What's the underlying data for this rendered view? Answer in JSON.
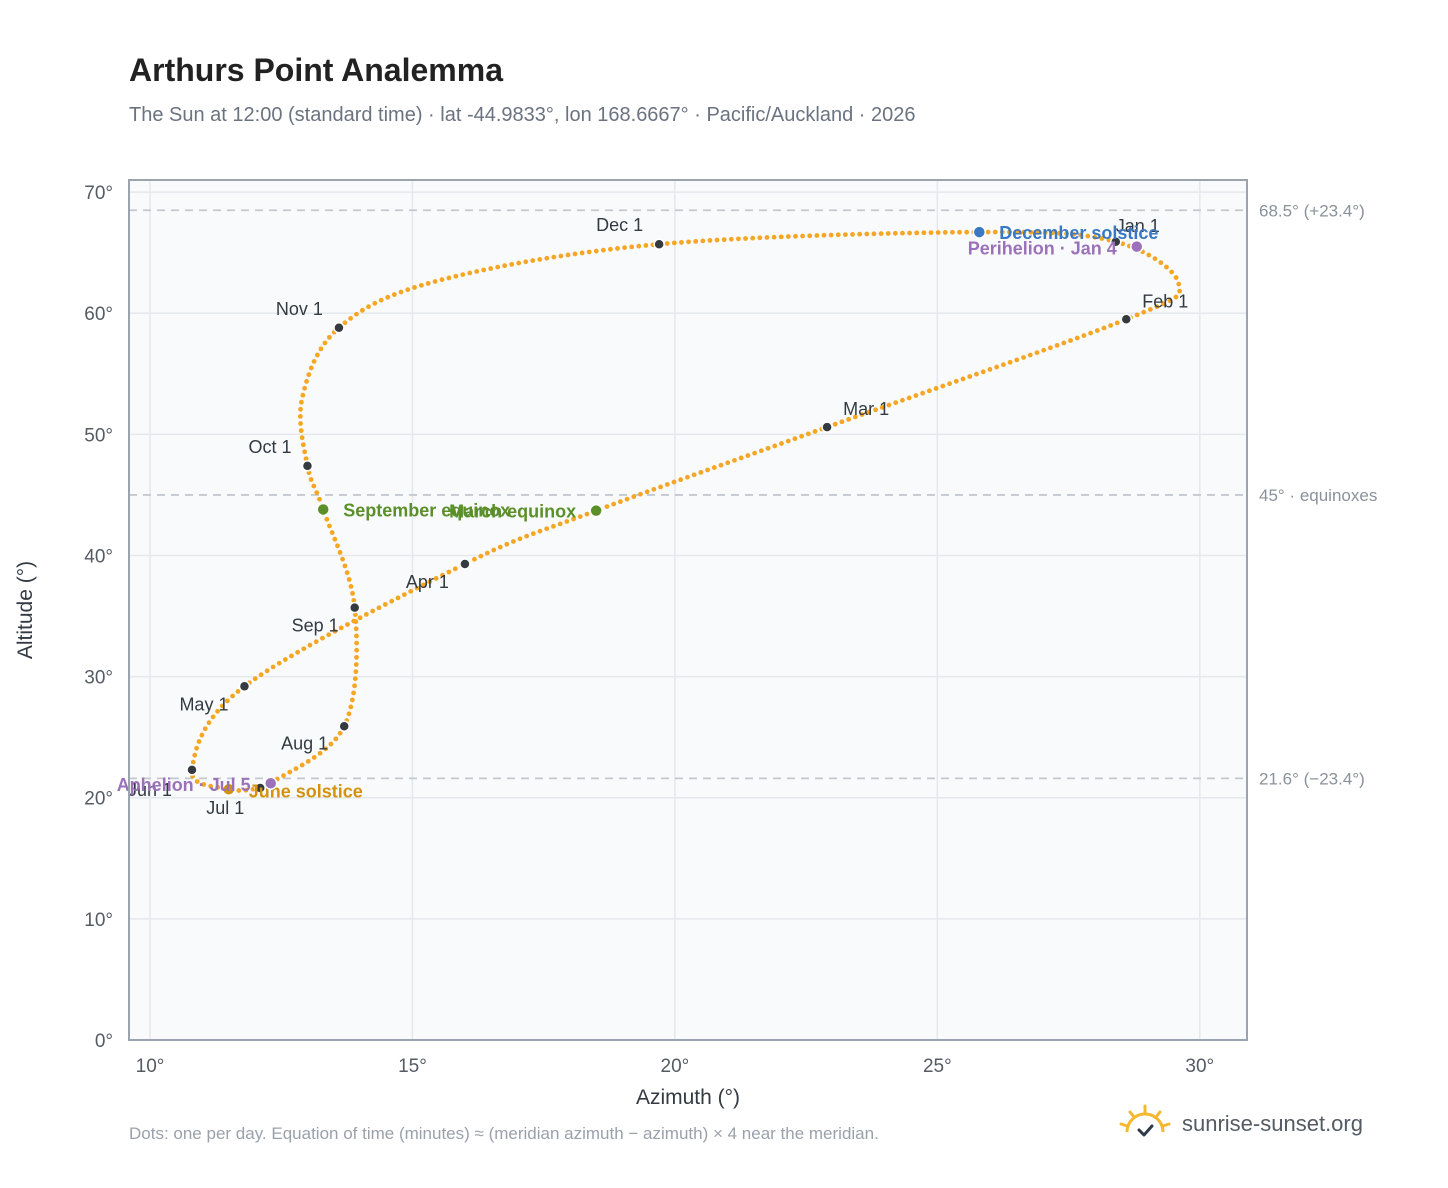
{
  "title": "Arthurs Point Analemma",
  "subtitle": "The Sun at 12:00 (standard time) · lat -44.9833°, lon 168.6667° · Pacific/Auckland · 2026",
  "footnote": "Dots: one per day. Equation of time (minutes) ≈ (meridian azimuth − azimuth) × 4 near the meridian.",
  "brand": {
    "text": "sunrise-sunset.org",
    "icon": "sun-icon",
    "color": "#f5b82e"
  },
  "colors": {
    "curve": "#f5a623",
    "month_marker": "#343a40",
    "equinox": "#5a8f29",
    "solstice_december": "#3a78c2",
    "solstice_june": "#d4920f",
    "apsis": "#9b72b9",
    "reference_line": "#c4c8cf",
    "grid": "#e5e8ec",
    "plot_background": "#f8fafc",
    "frame": "#9aa3ae"
  },
  "chart_data": {
    "type": "scatter",
    "xlabel": "Azimuth (°)",
    "ylabel": "Altitude (°)",
    "xlim": [
      9.6,
      30.9
    ],
    "ylim": [
      0,
      71
    ],
    "xticks": [
      10,
      15,
      20,
      25,
      30
    ],
    "yticks": [
      0,
      10,
      20,
      30,
      40,
      50,
      60,
      70
    ],
    "tick_suffix": "°",
    "grid": true,
    "reference_lines": [
      {
        "y": 68.5,
        "label": "68.5° (+23.4°)"
      },
      {
        "y": 45.0,
        "label": "45° · equinoxes"
      },
      {
        "y": 21.6,
        "label": "21.6° (−23.4°)"
      }
    ],
    "series": [
      {
        "points": [
          [
            28.4,
            65.9
          ],
          [
            29.6,
            62.4
          ],
          [
            28.6,
            59.5
          ],
          [
            22.9,
            50.6
          ],
          [
            18.5,
            43.7
          ],
          [
            16.0,
            39.3
          ],
          [
            11.8,
            29.2
          ],
          [
            10.8,
            22.3
          ],
          [
            11.5,
            20.7
          ],
          [
            12.1,
            20.8
          ],
          [
            12.3,
            21.2
          ],
          [
            13.7,
            25.9
          ],
          [
            13.9,
            35.7
          ],
          [
            13.3,
            43.8
          ],
          [
            13.0,
            47.4
          ],
          [
            12.9,
            53.0
          ],
          [
            13.6,
            58.8
          ],
          [
            15.5,
            62.7
          ],
          [
            19.7,
            65.7
          ],
          [
            25.8,
            66.7
          ],
          [
            28.4,
            65.9
          ]
        ]
      }
    ],
    "month_markers": [
      {
        "label": "Jan 1",
        "x": 28.4,
        "y": 65.9
      },
      {
        "label": "Feb 1",
        "x": 28.6,
        "y": 59.5
      },
      {
        "label": "Mar 1",
        "x": 22.9,
        "y": 50.6
      },
      {
        "label": "Apr 1",
        "x": 16.0,
        "y": 39.3
      },
      {
        "label": "May 1",
        "x": 11.8,
        "y": 29.2
      },
      {
        "label": "Jun 1",
        "x": 10.8,
        "y": 22.3
      },
      {
        "label": "Jul 1",
        "x": 12.1,
        "y": 20.8
      },
      {
        "label": "Aug 1",
        "x": 13.7,
        "y": 25.9
      },
      {
        "label": "Sep 1",
        "x": 13.9,
        "y": 35.7
      },
      {
        "label": "Oct 1",
        "x": 13.0,
        "y": 47.4
      },
      {
        "label": "Nov 1",
        "x": 13.6,
        "y": 58.8
      },
      {
        "label": "Dec 1",
        "x": 19.7,
        "y": 65.7
      }
    ],
    "events": [
      {
        "label": "March equinox",
        "x": 18.5,
        "y": 43.7,
        "kind": "equinox"
      },
      {
        "label": "September equinox",
        "x": 13.3,
        "y": 43.8,
        "kind": "equinox"
      },
      {
        "label": "December solstice",
        "x": 25.8,
        "y": 66.7,
        "kind": "solstice_december"
      },
      {
        "label": "June solstice",
        "x": 11.5,
        "y": 20.7,
        "kind": "solstice_june"
      },
      {
        "label": "Perihelion · Jan 4",
        "x": 28.8,
        "y": 65.5,
        "kind": "apsis"
      },
      {
        "label": "Aphelion · Jul 5",
        "x": 12.3,
        "y": 21.2,
        "kind": "apsis"
      }
    ]
  }
}
